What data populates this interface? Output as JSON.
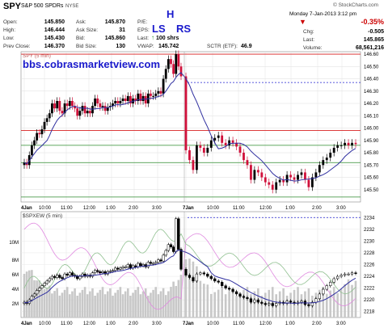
{
  "header": {
    "ticker": "SPY",
    "name": "S&P 500 SPDRs",
    "exchange": "NYSE",
    "date": "Monday  7-Jan-2013  3:12 pm",
    "brand": "© StockCharts.com",
    "fields": {
      "open_label": "Open:",
      "open": "145.850",
      "high_label": "High:",
      "high": "146.444",
      "low_label": "Low:",
      "low": "145.430",
      "prev_label": "Prev Close:",
      "prev": "146.370",
      "ask_label": "Ask:",
      "ask": "145.870",
      "asksize_label": "Ask Size:",
      "asksize": "31",
      "bid_label": "Bid:",
      "bid": "145.860",
      "bidsize_label": "Bid Size:",
      "bidsize": "130",
      "pe_label": "P/E:",
      "eps_label": "EPS:",
      "last_label": "Last:",
      "last": "100 shrs",
      "vwap_label": "VWAP:",
      "vwap": "145.742",
      "sctr_label": "SCTR (ETF):",
      "sctr": "46.9",
      "chg_pct": "-0.35%",
      "chg_label": "Chg:",
      "chg": "-0.505",
      "lastprice_label": "Last:",
      "lastprice": "145.865",
      "volume_label": "Volume:",
      "volume": "68,561,216"
    }
  },
  "annotations": {
    "h": "H",
    "ls": "LS",
    "rs": "RS",
    "watermark": "bbs.cobrasmarketview.com"
  },
  "colors": {
    "annotation": "#1a1acc",
    "watermark": "#1a1acc",
    "down_candle": "#d0103a",
    "up_candle": "#000000",
    "ma": "#3030a0",
    "support": "#2e8b2e",
    "resistance": "#d82020",
    "pink_line": "#e08ae0",
    "green_line": "#90c090"
  },
  "chart_data": [
    {
      "type": "candlestick",
      "title": "SPY (5 min)",
      "xlabel": "",
      "ylabel": "",
      "ylim": [
        145.4,
        146.62
      ],
      "x_tick_labels": [
        "4Jan",
        "10:00",
        "11:00",
        "12:00",
        "1:00",
        "2:00",
        "3:00",
        "7Jan",
        "10:00",
        "11:00",
        "12:00",
        "1:00",
        "2:00",
        "3:00"
      ],
      "y_tick_labels": [
        "146.60",
        "146.50",
        "146.40",
        "146.30",
        "146.20",
        "146.10",
        "146.00",
        "145.90",
        "145.80",
        "145.70",
        "145.60",
        "145.50"
      ],
      "horizontal_lines": [
        {
          "y": 146.6,
          "color": "red"
        },
        {
          "y": 146.37,
          "color": "blue",
          "style": "dashed"
        },
        {
          "y": 145.98,
          "color": "red"
        },
        {
          "y": 145.86,
          "color": "green"
        },
        {
          "y": 145.72,
          "color": "green"
        },
        {
          "y": 145.44,
          "color": "green"
        }
      ],
      "close": [
        145.72,
        145.7,
        145.78,
        145.86,
        145.9,
        145.96,
        145.95,
        145.99,
        146.05,
        146.08,
        146.12,
        146.2,
        146.16,
        146.22,
        146.14,
        146.12,
        146.2,
        146.18,
        146.22,
        146.18,
        146.16,
        146.1,
        146.14,
        146.18,
        146.12,
        146.14,
        146.12,
        146.18,
        146.24,
        146.2,
        146.17,
        146.18,
        146.14,
        146.17,
        146.18,
        146.2,
        146.22,
        146.2,
        146.22,
        146.24,
        146.22,
        146.26,
        146.2,
        146.24,
        146.22,
        146.28,
        146.22,
        146.26,
        146.2,
        146.28,
        146.26,
        146.26,
        146.28,
        146.3,
        146.28,
        146.4,
        146.48,
        146.56,
        146.52,
        146.44,
        146.6,
        146.5,
        146.42,
        145.82,
        145.74,
        145.66,
        145.86,
        145.84,
        145.8,
        145.84,
        145.9,
        145.92,
        145.94,
        145.88,
        145.86,
        145.9,
        145.88,
        145.85,
        145.8,
        145.74,
        145.7,
        145.58,
        145.66,
        145.64,
        145.6,
        145.56,
        145.54,
        145.5,
        145.56,
        145.58,
        145.56,
        145.62,
        145.6,
        145.58,
        145.62,
        145.64,
        145.58,
        145.52,
        145.6,
        145.64,
        145.7,
        145.74,
        145.76,
        145.8,
        145.84,
        145.86,
        145.86,
        145.88,
        145.86,
        145.88,
        145.87
      ]
    },
    {
      "type": "line",
      "title": "$SPXEW (5 min)",
      "xlabel": "",
      "ylabel": "",
      "ylim": [
        2217,
        2235
      ],
      "x_tick_labels": [
        "4Jan",
        "10:00",
        "11:00",
        "12:00",
        "1:00",
        "2:00",
        "3:00",
        "7Jan",
        "10:00",
        "11:00",
        "12:00",
        "1:00",
        "2:00",
        "3:00"
      ],
      "y_tick_labels": [
        "2234",
        "2232",
        "2230",
        "2228",
        "2226",
        "2224",
        "2222",
        "2220",
        "2218"
      ],
      "volume_tick_labels": [
        "10M",
        "8M",
        "6M",
        "4M",
        "2M"
      ],
      "horizontal_lines": [
        {
          "y": 2234,
          "color": "blue",
          "style": "dashed"
        }
      ],
      "close": [
        2219.6,
        2219.4,
        2220.0,
        2220.6,
        2221.0,
        2221.6,
        2222.0,
        2222.4,
        2222.8,
        2223.2,
        2223.6,
        2224.0,
        2223.8,
        2224.2,
        2223.8,
        2223.6,
        2224.4,
        2224.2,
        2224.6,
        2224.2,
        2224.0,
        2223.6,
        2224.0,
        2224.4,
        2224.0,
        2224.2,
        2224.0,
        2224.6,
        2225.0,
        2224.8,
        2224.6,
        2224.8,
        2224.4,
        2224.8,
        2224.9,
        2225.0,
        2225.4,
        2225.2,
        2225.4,
        2225.6,
        2225.6,
        2226.0,
        2225.4,
        2225.8,
        2225.6,
        2226.2,
        2225.8,
        2226.0,
        2225.6,
        2226.4,
        2226.2,
        2226.2,
        2226.4,
        2226.8,
        2226.6,
        2227.6,
        2228.4,
        2229.4,
        2229.0,
        2228.2,
        2233.8,
        2228.6,
        2225.2,
        2224.2,
        2223.8,
        2223.2,
        2224.4,
        2224.6,
        2224.4,
        2224.0,
        2223.6,
        2223.2,
        2223.0,
        2222.4,
        2222.0,
        2221.8,
        2221.4,
        2221.0,
        2220.6,
        2220.4,
        2220.2,
        2219.6,
        2220.0,
        2219.6,
        2219.4,
        2219.2,
        2219.4,
        2219.0,
        2219.4,
        2219.6,
        2219.4,
        2219.8,
        2219.6,
        2219.4,
        2219.6,
        2219.8,
        2219.2,
        2219.0,
        2219.6,
        2220.2,
        2221.0,
        2221.8,
        2222.4,
        2223.0,
        2223.6,
        2224.0,
        2224.2,
        2224.4,
        2224.4,
        2224.6,
        2224.5
      ]
    }
  ]
}
